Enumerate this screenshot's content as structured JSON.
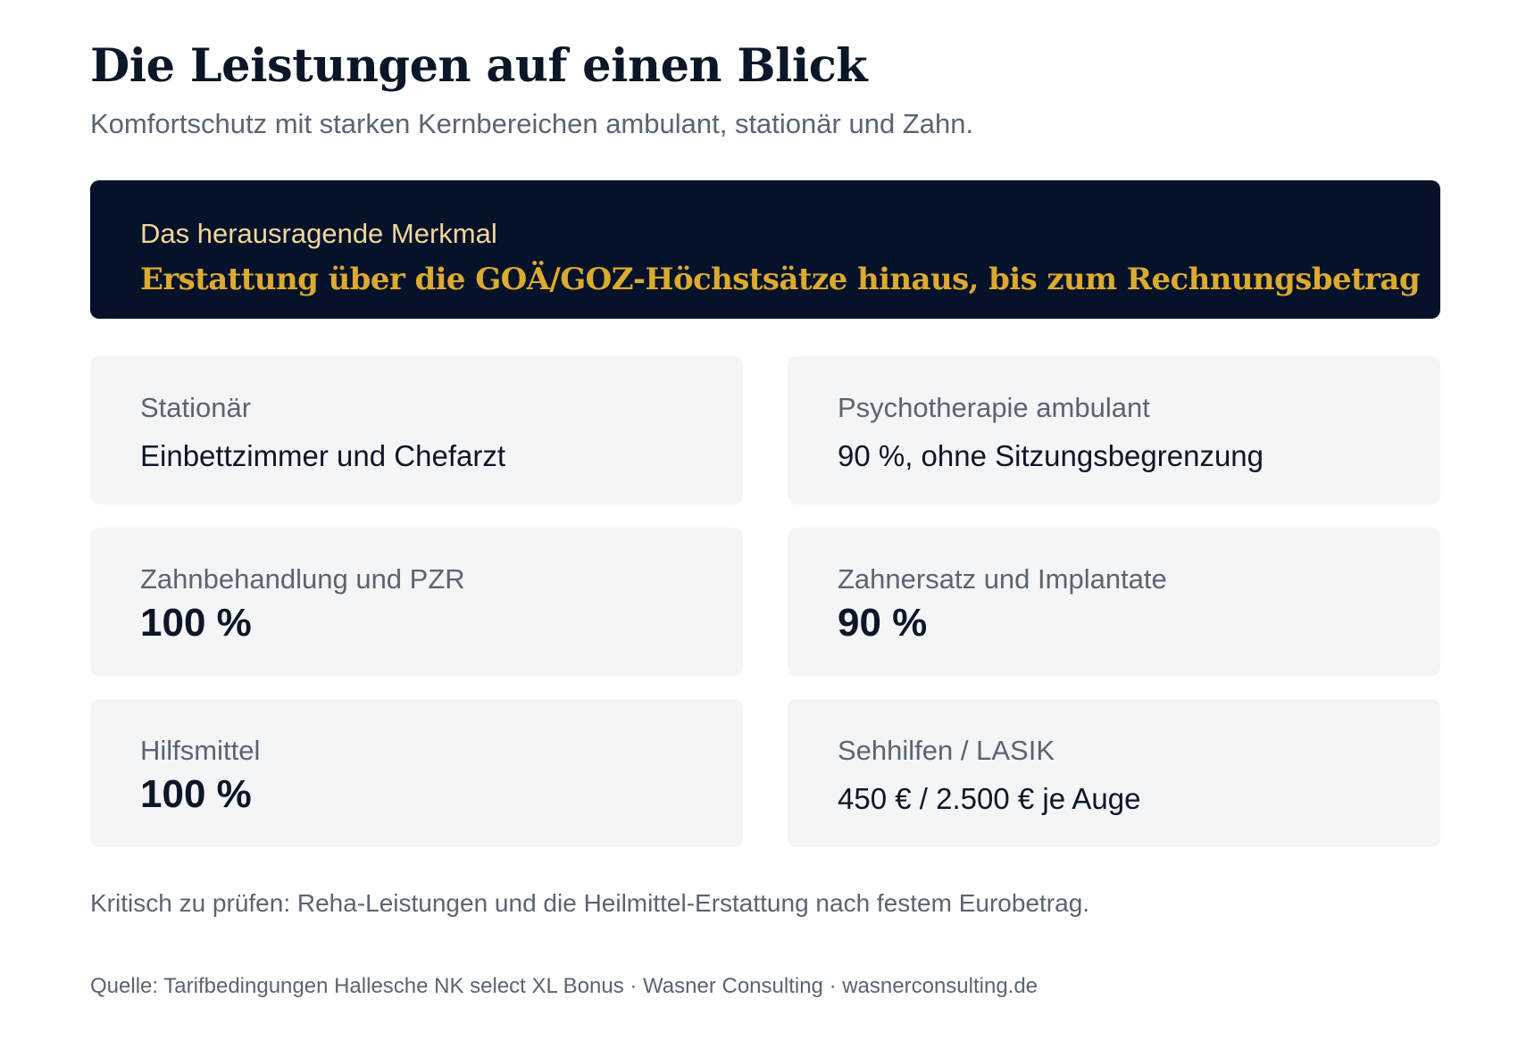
{
  "header": {
    "title": "Die Leistungen auf einen Blick",
    "subtitle": "Komfortschutz mit starken Kernbereichen ambulant, stationär und Zahn."
  },
  "highlight": {
    "label": "Das herausragende Merkmal",
    "value": "Erstattung über die GOÄ/GOZ-Höchstsätze hinaus, bis zum Rechnungsbetrag"
  },
  "cards": [
    {
      "label": "Stationär",
      "value": "Einbettzimmer und Chefarzt"
    },
    {
      "label": "Psychotherapie ambulant",
      "value": "90 %, ohne Sitzungsbegrenzung"
    },
    {
      "label": "Zahnbehandlung und PZR",
      "value": "100 %"
    },
    {
      "label": "Zahnersatz und Implantate",
      "value": "90 %"
    },
    {
      "label": "Hilfsmittel",
      "value": "100 %"
    },
    {
      "label": "Sehhilfen / LASIK",
      "value": "450 € / 2.500 € je Auge"
    }
  ],
  "note": "Kritisch zu prüfen: Reha-Leistungen und die Heilmittel-Erstattung nach festem Eurobetrag.",
  "source": "Quelle: Tarifbedingungen Hallesche NK select XL Bonus · Wasner Consulting · wasnerconsulting.de",
  "colors": {
    "highlight_background": "#05122a",
    "highlight_label": "#f0d79a",
    "highlight_value": "#dcaa2e",
    "card_background": "#f4f5f7"
  }
}
